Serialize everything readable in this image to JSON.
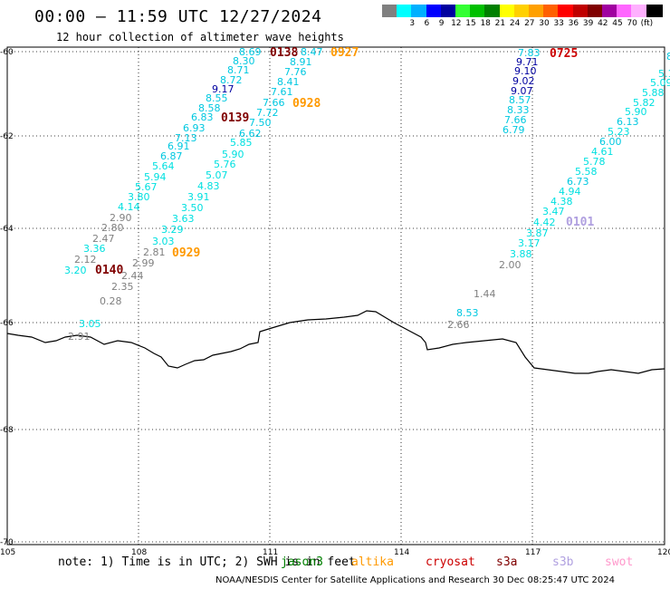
{
  "header": {
    "title": "00:00 – 11:59 UTC 12/27/2024",
    "subtitle": "12 hour collection of altimeter wave heights"
  },
  "legend": {
    "colors": [
      "#808080",
      "#00ffff",
      "#00b0ff",
      "#0000ff",
      "#0000a0",
      "#33ff33",
      "#00c000",
      "#008000",
      "#ffff00",
      "#ffd000",
      "#ffa000",
      "#ff6000",
      "#ff0000",
      "#c00000",
      "#800000",
      "#a000a0",
      "#ff66ff",
      "#ffb0ff",
      "#000000"
    ],
    "labels": [
      "",
      "3",
      "6",
      "9",
      "12",
      "15",
      "18",
      "21",
      "24",
      "27",
      "30",
      "33",
      "36",
      "39",
      "42",
      "45",
      "70",
      "(ft)",
      ""
    ]
  },
  "map": {
    "lat_ticks": [
      "-60",
      "-62",
      "-64",
      "-66",
      "-68",
      "-70"
    ],
    "lon_ticks": [
      "105",
      "108",
      "111",
      "114",
      "117",
      "120"
    ]
  },
  "footer": {
    "note": "note: 1) Time is in UTC; 2) SWH is in feet",
    "missions": [
      {
        "name": "jason3",
        "color": "#008000"
      },
      {
        "name": "altika",
        "color": "#ff9900"
      },
      {
        "name": "cryosat",
        "color": "#cc0000"
      },
      {
        "name": "s3a",
        "color": "#800000"
      },
      {
        "name": "s3b",
        "color": "#b0a0e0"
      },
      {
        "name": "swot",
        "color": "#ff99cc"
      }
    ],
    "credit": "NOAA/NESDIS Center for Satellite Applications and Research   30 Dec 08:25:47 UTC 2024"
  },
  "pass_labels": [
    {
      "text": "0138",
      "color": "#800000"
    },
    {
      "text": "0927",
      "color": "#ff9900"
    },
    {
      "text": "0928",
      "color": "#ff9900"
    },
    {
      "text": "0139",
      "color": "#800000"
    },
    {
      "text": "0929",
      "color": "#ff9900"
    },
    {
      "text": "0140",
      "color": "#800000"
    },
    {
      "text": "0725",
      "color": "#cc0000"
    },
    {
      "text": "0101",
      "color": "#b0a0e0"
    }
  ],
  "wave_labels": [
    {
      "text": "8.69",
      "color": "#00c8e0"
    },
    {
      "text": "8.47",
      "color": "#00c8e0"
    },
    {
      "text": "8.30",
      "color": "#00c8e0"
    },
    {
      "text": "8.91",
      "color": "#00c8e0"
    },
    {
      "text": "8.71",
      "color": "#00c8e0"
    },
    {
      "text": "7.76",
      "color": "#00c8e0"
    },
    {
      "text": "8.72",
      "color": "#00c8e0"
    },
    {
      "text": "8.41",
      "color": "#00c8e0"
    },
    {
      "text": "9.17",
      "color": "#0000a0"
    },
    {
      "text": "7.61",
      "color": "#00c8e0"
    },
    {
      "text": "8.55",
      "color": "#00c8e0"
    },
    {
      "text": "7.66",
      "color": "#00c8e0"
    },
    {
      "text": "8.58",
      "color": "#00c8e0"
    },
    {
      "text": "7.72",
      "color": "#00c8e0"
    },
    {
      "text": "6.83",
      "color": "#00c8e0"
    },
    {
      "text": "7.50",
      "color": "#00c8e0"
    },
    {
      "text": "6.93",
      "color": "#00c8e0"
    },
    {
      "text": "6.62",
      "color": "#00c8e0"
    },
    {
      "text": "7.13",
      "color": "#00c8e0"
    },
    {
      "text": "6.91",
      "color": "#00c8e0"
    },
    {
      "text": "5.85",
      "color": "#00e0e0"
    },
    {
      "text": "6.87",
      "color": "#00c8e0"
    },
    {
      "text": "5.90",
      "color": "#00e0e0"
    },
    {
      "text": "5.64",
      "color": "#00e0e0"
    },
    {
      "text": "5.76",
      "color": "#00e0e0"
    },
    {
      "text": "5.94",
      "color": "#00e0e0"
    },
    {
      "text": "5.07",
      "color": "#00e0e0"
    },
    {
      "text": "5.67",
      "color": "#00e0e0"
    },
    {
      "text": "4.83",
      "color": "#00e0e0"
    },
    {
      "text": "3.80",
      "color": "#00e0e0"
    },
    {
      "text": "3.91",
      "color": "#00e0e0"
    },
    {
      "text": "4.14",
      "color": "#00e0e0"
    },
    {
      "text": "3.50",
      "color": "#00e0e0"
    },
    {
      "text": "2.90",
      "color": "#808080"
    },
    {
      "text": "3.63",
      "color": "#00e0e0"
    },
    {
      "text": "2.80",
      "color": "#808080"
    },
    {
      "text": "3.29",
      "color": "#00e0e0"
    },
    {
      "text": "2.47",
      "color": "#808080"
    },
    {
      "text": "3.03",
      "color": "#00e0e0"
    },
    {
      "text": "3.36",
      "color": "#00e0e0"
    },
    {
      "text": "2.81",
      "color": "#808080"
    },
    {
      "text": "2.12",
      "color": "#808080"
    },
    {
      "text": "2.99",
      "color": "#808080"
    },
    {
      "text": "3.20",
      "color": "#00e0e0"
    },
    {
      "text": "2.44",
      "color": "#808080"
    },
    {
      "text": "2.35",
      "color": "#808080"
    },
    {
      "text": "0.28",
      "color": "#808080"
    },
    {
      "text": "3.05",
      "color": "#00e0e0"
    },
    {
      "text": "2.91",
      "color": "#808080"
    },
    {
      "text": "7.83",
      "color": "#00c8e0"
    },
    {
      "text": "9.71",
      "color": "#0000a0"
    },
    {
      "text": "9.10",
      "color": "#0000a0"
    },
    {
      "text": "9.02",
      "color": "#0000a0"
    },
    {
      "text": "9.07",
      "color": "#0000a0"
    },
    {
      "text": "8.57",
      "color": "#00c8e0"
    },
    {
      "text": "8.33",
      "color": "#00c8e0"
    },
    {
      "text": "7.66",
      "color": "#00c8e0"
    },
    {
      "text": "6.79",
      "color": "#00c8e0"
    },
    {
      "text": "8.",
      "color": "#00c8e0"
    },
    {
      "text": "5.1",
      "color": "#00e0e0"
    },
    {
      "text": "5.09",
      "color": "#00e0e0"
    },
    {
      "text": "5.88",
      "color": "#00e0e0"
    },
    {
      "text": "5.82",
      "color": "#00e0e0"
    },
    {
      "text": "5.90",
      "color": "#00e0e0"
    },
    {
      "text": "6.13",
      "color": "#00c8e0"
    },
    {
      "text": "5.23",
      "color": "#00e0e0"
    },
    {
      "text": "6.00",
      "color": "#00c8e0"
    },
    {
      "text": "4.61",
      "color": "#00e0e0"
    },
    {
      "text": "5.78",
      "color": "#00e0e0"
    },
    {
      "text": "5.58",
      "color": "#00e0e0"
    },
    {
      "text": "6.73",
      "color": "#00c8e0"
    },
    {
      "text": "4.94",
      "color": "#00e0e0"
    },
    {
      "text": "4.38",
      "color": "#00e0e0"
    },
    {
      "text": "3.47",
      "color": "#00e0e0"
    },
    {
      "text": "4.42",
      "color": "#00e0e0"
    },
    {
      "text": "3.87",
      "color": "#00e0e0"
    },
    {
      "text": "3.17",
      "color": "#00e0e0"
    },
    {
      "text": "3.88",
      "color": "#00e0e0"
    },
    {
      "text": "2.00",
      "color": "#808080"
    },
    {
      "text": "1.44",
      "color": "#808080"
    },
    {
      "text": "8.53",
      "color": "#00c8e0"
    },
    {
      "text": "2.66",
      "color": "#808080"
    }
  ]
}
